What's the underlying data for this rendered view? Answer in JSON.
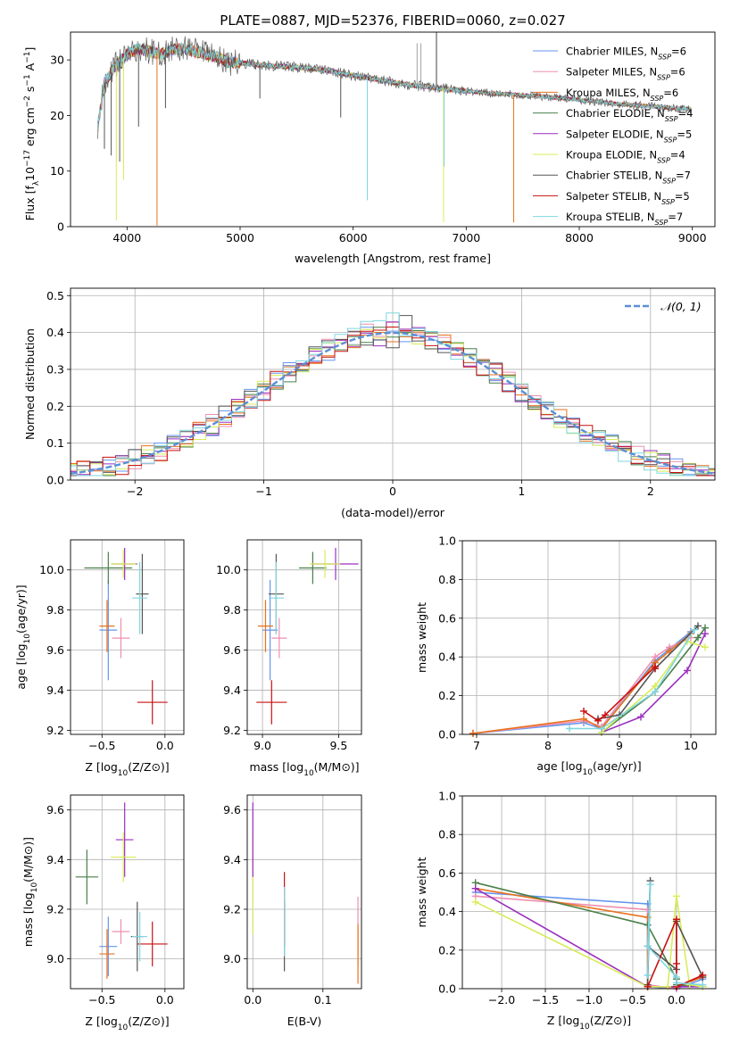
{
  "figure_title": "PLATE=0887, MJD=52376, FIBERID=0060, z=0.027",
  "colors": {
    "chabrier_miles": "#6495ed",
    "salpeter_miles": "#ee8fb0",
    "kroupa_miles": "#e8721e",
    "chabrier_elodie": "#4a7f4a",
    "salpeter_elodie": "#9b2fbf",
    "kroupa_elodie": "#d8ec5a",
    "chabrier_stelib": "#555555",
    "salpeter_stelib": "#c81010",
    "kroupa_stelib": "#7fd6e0",
    "normal_curve": "#5b8fd6"
  },
  "chart_data": [
    {
      "id": "spectrum",
      "type": "line",
      "title": "PLATE=0887, MJD=52376, FIBERID=0060, z=0.027",
      "xlabel": "wavelength [Angstrom, rest frame]",
      "ylabel": "Flux [fλ10⁻¹⁷ erg cm⁻² s⁻¹ A⁻¹]",
      "xlim": [
        3500,
        9200
      ],
      "ylim": [
        0,
        35
      ],
      "xticks": [
        4000,
        5000,
        6000,
        7000,
        8000,
        9000
      ],
      "yticks": [
        0,
        10,
        20,
        30
      ],
      "grid": false,
      "legend_placement": "top-right",
      "series": [
        {
          "name": "Chabrier MILES, Nₛₛₚ=6",
          "legend": "Chabrier MILES, N",
          "sub": "SSP",
          "suffix": "=6",
          "color_key": "chabrier_miles"
        },
        {
          "name": "Salpeter MILES, Nₛₛₚ=6",
          "legend": "Salpeter MILES, N",
          "sub": "SSP",
          "suffix": "=6",
          "color_key": "salpeter_miles"
        },
        {
          "name": "Kroupa MILES, Nₛₛₚ=6",
          "legend": "Kroupa MILES, N",
          "sub": "SSP",
          "suffix": "=6",
          "color_key": "kroupa_miles"
        },
        {
          "name": "Chabrier ELODIE, Nₛₛₚ=4",
          "legend": "Chabrier ELODIE, N",
          "sub": "SSP",
          "suffix": "=4",
          "color_key": "chabrier_elodie"
        },
        {
          "name": "Salpeter ELODIE, Nₛₛₚ=5",
          "legend": "Salpeter ELODIE, N",
          "sub": "SSP",
          "suffix": "=5",
          "color_key": "salpeter_elodie"
        },
        {
          "name": "Kroupa ELODIE, Nₛₛₚ=4",
          "legend": "Kroupa ELODIE, N",
          "sub": "SSP",
          "suffix": "=4",
          "color_key": "kroupa_elodie"
        },
        {
          "name": "Chabrier STELIB, Nₛₛₚ=7",
          "legend": "Chabrier STELIB, N",
          "sub": "SSP",
          "suffix": "=7",
          "color_key": "chabrier_stelib"
        },
        {
          "name": "Salpeter STELIB, Nₛₛₚ=5",
          "legend": "Salpeter STELIB, N",
          "sub": "SSP",
          "suffix": "=5",
          "color_key": "salpeter_stelib"
        },
        {
          "name": "Kroupa STELIB, Nₛₛₚ=7",
          "legend": "Kroupa STELIB, N",
          "sub": "SSP",
          "suffix": "=7",
          "color_key": "kroupa_stelib"
        }
      ],
      "continuum": {
        "x": [
          3740,
          3800,
          3900,
          4000,
          4100,
          4200,
          4300,
          4400,
          4500,
          4600,
          4700,
          4800,
          4900,
          5000,
          5200,
          5400,
          5600,
          5800,
          6000,
          6200,
          6400,
          6600,
          6800,
          7000,
          7200,
          7400,
          7600,
          7800,
          8000,
          8200,
          8400,
          8600,
          8800,
          9000
        ],
        "y": [
          18,
          26,
          29,
          31,
          32,
          31.5,
          31,
          31.8,
          32,
          31.5,
          31,
          30.5,
          29.5,
          29.5,
          29,
          28.8,
          28.5,
          28,
          27.2,
          26.5,
          25.8,
          25.3,
          24.8,
          24.4,
          24.0,
          23.8,
          23.5,
          23.2,
          22.8,
          22.4,
          22.0,
          21.7,
          21.4,
          21.1
        ]
      },
      "absorption_features": [
        {
          "x": 3800,
          "depth": 12,
          "color_key": "chabrier_stelib"
        },
        {
          "x": 3860,
          "depth": 15,
          "color_key": "chabrier_stelib"
        },
        {
          "x": 3905,
          "depth": 28,
          "color_key": "kroupa_elodie"
        },
        {
          "x": 3935,
          "depth": 18,
          "color_key": "chabrier_stelib"
        },
        {
          "x": 3970,
          "depth": 22,
          "color_key": "kroupa_elodie"
        },
        {
          "x": 4102,
          "depth": 14,
          "color_key": "chabrier_stelib"
        },
        {
          "x": 4265,
          "depth": 31,
          "color_key": "kroupa_miles"
        },
        {
          "x": 4340,
          "depth": 10,
          "color_key": "chabrier_stelib"
        },
        {
          "x": 5175,
          "depth": 6,
          "color_key": "chabrier_stelib"
        },
        {
          "x": 5890,
          "depth": 8,
          "color_key": "chabrier_stelib"
        },
        {
          "x": 6125,
          "depth": 22,
          "color_key": "kroupa_stelib"
        },
        {
          "x": 6800,
          "depth": 24,
          "color_key": "kroupa_elodie"
        },
        {
          "x": 6805,
          "depth": 14,
          "color_key": "kroupa_stelib"
        },
        {
          "x": 7420,
          "depth": 23,
          "color_key": "kroupa_miles"
        }
      ],
      "emission_spikes": [
        {
          "x": 6565,
          "height": 33
        },
        {
          "x": 6600,
          "height": 33
        },
        {
          "x": 6732,
          "height": 35
        },
        {
          "x": 6740,
          "height": 35
        }
      ]
    },
    {
      "id": "residuals",
      "type": "line",
      "xlabel": "(data-model)/error",
      "ylabel": "Normed distribution",
      "xlim": [
        -2.5,
        2.5
      ],
      "ylim": [
        0,
        0.52
      ],
      "xticks": [
        -2,
        -1,
        0,
        1,
        2
      ],
      "yticks": [
        0.0,
        0.1,
        0.2,
        0.3,
        0.4,
        0.5
      ],
      "grid": true,
      "legend_placement": "top-right",
      "normal_curve": {
        "name": "𝒩(0, 1)",
        "mean": 0,
        "sigma": 1
      },
      "bin_width": 0.1,
      "histogram_color_keys": [
        "chabrier_miles",
        "salpeter_miles",
        "kroupa_miles",
        "chabrier_elodie",
        "salpeter_elodie",
        "kroupa_elodie",
        "chabrier_stelib",
        "salpeter_stelib",
        "kroupa_stelib"
      ]
    },
    {
      "id": "age_vs_Z",
      "type": "scatter",
      "xlabel": "Z [log₁₀(Z/Z⊙)]",
      "ylabel": "age [log₁₀(age/yr)]",
      "xlim": [
        -0.75,
        0.15
      ],
      "ylim": [
        9.18,
        10.15
      ],
      "xticks": [
        -0.5,
        0.0
      ],
      "yticks": [
        9.2,
        9.4,
        9.6,
        9.8,
        10.0
      ],
      "grid": true,
      "points": [
        {
          "x": -0.45,
          "y": 9.7,
          "xerr": 0.07,
          "yerr": 0.25,
          "color_key": "chabrier_miles"
        },
        {
          "x": -0.35,
          "y": 9.66,
          "xerr": 0.07,
          "yerr": 0.1,
          "color_key": "salpeter_miles"
        },
        {
          "x": -0.46,
          "y": 9.72,
          "xerr": 0.06,
          "yerr": 0.13,
          "color_key": "kroupa_miles"
        },
        {
          "x": -0.45,
          "y": 10.01,
          "xerr": 0.19,
          "yerr": 0.08,
          "color_key": "chabrier_elodie"
        },
        {
          "x": -0.32,
          "y": 10.03,
          "xerr": 0.1,
          "yerr": 0.08,
          "color_key": "salpeter_elodie"
        },
        {
          "x": -0.33,
          "y": 10.03,
          "xerr": 0.1,
          "yerr": 0.07,
          "color_key": "kroupa_elodie"
        },
        {
          "x": -0.18,
          "y": 9.88,
          "xerr": 0.05,
          "yerr": 0.2,
          "color_key": "chabrier_stelib"
        },
        {
          "x": -0.1,
          "y": 9.34,
          "xerr": 0.12,
          "yerr": 0.11,
          "color_key": "salpeter_stelib"
        },
        {
          "x": -0.2,
          "y": 9.86,
          "xerr": 0.06,
          "yerr": 0.18,
          "color_key": "kroupa_stelib"
        }
      ]
    },
    {
      "id": "age_vs_mass",
      "type": "scatter",
      "xlabel": "mass [log₁₀(M/M⊙)]",
      "ylabel": "",
      "xlim": [
        8.9,
        9.65
      ],
      "ylim": [
        9.18,
        10.15
      ],
      "xticks": [
        9.0,
        9.5
      ],
      "yticks": [
        9.2,
        9.4,
        9.6,
        9.8,
        10.0
      ],
      "grid": true,
      "points": [
        {
          "x": 9.05,
          "y": 9.7,
          "xerr": 0.05,
          "yerr": 0.25,
          "color_key": "chabrier_miles"
        },
        {
          "x": 9.11,
          "y": 9.66,
          "xerr": 0.05,
          "yerr": 0.1,
          "color_key": "salpeter_miles"
        },
        {
          "x": 9.02,
          "y": 9.72,
          "xerr": 0.05,
          "yerr": 0.13,
          "color_key": "kroupa_miles"
        },
        {
          "x": 9.33,
          "y": 10.01,
          "xerr": 0.09,
          "yerr": 0.08,
          "color_key": "chabrier_elodie"
        },
        {
          "x": 9.48,
          "y": 10.03,
          "xerr": 0.15,
          "yerr": 0.08,
          "color_key": "salpeter_elodie"
        },
        {
          "x": 9.41,
          "y": 10.03,
          "xerr": 0.1,
          "yerr": 0.07,
          "color_key": "kroupa_elodie"
        },
        {
          "x": 9.09,
          "y": 9.88,
          "xerr": 0.05,
          "yerr": 0.2,
          "color_key": "chabrier_stelib"
        },
        {
          "x": 9.06,
          "y": 9.34,
          "xerr": 0.1,
          "yerr": 0.11,
          "color_key": "salpeter_stelib"
        },
        {
          "x": 9.09,
          "y": 9.86,
          "xerr": 0.05,
          "yerr": 0.18,
          "color_key": "kroupa_stelib"
        }
      ]
    },
    {
      "id": "mass_weight_vs_age",
      "type": "line",
      "xlabel": "age [log₁₀(age/yr)]",
      "ylabel": "mass weight",
      "xlim": [
        6.8,
        10.35
      ],
      "ylim": [
        0,
        1.0
      ],
      "xticks": [
        7,
        8,
        9,
        10
      ],
      "yticks": [
        0.0,
        0.2,
        0.4,
        0.6,
        0.8,
        1.0
      ],
      "grid": true,
      "series": [
        {
          "color_key": "chabrier_miles",
          "x": [
            6.95,
            8.5,
            8.75,
            9.5,
            9.7,
            10.0
          ],
          "y": [
            0.005,
            0.06,
            0.03,
            0.38,
            0.44,
            0.53
          ]
        },
        {
          "color_key": "salpeter_miles",
          "x": [
            6.95,
            8.5,
            8.75,
            9.5,
            9.7,
            10.0
          ],
          "y": [
            0.005,
            0.07,
            0.04,
            0.4,
            0.45,
            0.5
          ]
        },
        {
          "color_key": "kroupa_miles",
          "x": [
            6.95,
            8.5,
            8.75,
            9.5,
            9.7,
            10.0
          ],
          "y": [
            0.005,
            0.08,
            0.03,
            0.37,
            0.43,
            0.52
          ]
        },
        {
          "color_key": "chabrier_elodie",
          "x": [
            8.75,
            9.5,
            10.1,
            10.2
          ],
          "y": [
            0.01,
            0.22,
            0.5,
            0.55
          ]
        },
        {
          "color_key": "salpeter_elodie",
          "x": [
            8.75,
            9.3,
            9.95,
            10.2
          ],
          "y": [
            0.01,
            0.09,
            0.33,
            0.52
          ]
        },
        {
          "color_key": "kroupa_elodie",
          "x": [
            8.75,
            9.5,
            9.95,
            10.2
          ],
          "y": [
            0.01,
            0.25,
            0.48,
            0.45
          ]
        },
        {
          "color_key": "chabrier_stelib",
          "x": [
            8.7,
            9.0,
            9.5,
            10.1
          ],
          "y": [
            0.08,
            0.1,
            0.34,
            0.56
          ]
        },
        {
          "color_key": "salpeter_stelib",
          "x": [
            8.5,
            8.7,
            8.8,
            9.5,
            9.5
          ],
          "y": [
            0.12,
            0.07,
            0.1,
            0.35,
            0.34
          ]
        },
        {
          "color_key": "kroupa_stelib",
          "x": [
            8.3,
            8.75,
            9.5,
            10.05
          ],
          "y": [
            0.03,
            0.03,
            0.22,
            0.54
          ]
        }
      ]
    },
    {
      "id": "mass_vs_Z",
      "type": "scatter",
      "xlabel": "Z [log₁₀(Z/Z⊙)]",
      "ylabel": "mass [log₁₀(M/M⊙)]",
      "xlim": [
        -0.75,
        0.15
      ],
      "ylim": [
        8.88,
        9.66
      ],
      "xticks": [
        -0.5,
        0.0
      ],
      "yticks": [
        9.0,
        9.2,
        9.4,
        9.6
      ],
      "grid": true,
      "points": [
        {
          "x": -0.45,
          "y": 9.05,
          "xerr": 0.07,
          "yerr": 0.12,
          "color_key": "chabrier_miles"
        },
        {
          "x": -0.35,
          "y": 9.11,
          "xerr": 0.07,
          "yerr": 0.05,
          "color_key": "salpeter_miles"
        },
        {
          "x": -0.46,
          "y": 9.02,
          "xerr": 0.06,
          "yerr": 0.1,
          "color_key": "kroupa_miles"
        },
        {
          "x": -0.62,
          "y": 9.33,
          "xerr": 0.09,
          "yerr": 0.11,
          "color_key": "chabrier_elodie"
        },
        {
          "x": -0.32,
          "y": 9.48,
          "xerr": 0.07,
          "yerr": 0.15,
          "color_key": "salpeter_elodie"
        },
        {
          "x": -0.33,
          "y": 9.41,
          "xerr": 0.1,
          "yerr": 0.1,
          "color_key": "kroupa_elodie"
        },
        {
          "x": -0.22,
          "y": 9.09,
          "xerr": 0.05,
          "yerr": 0.14,
          "color_key": "chabrier_stelib"
        },
        {
          "x": -0.1,
          "y": 9.06,
          "xerr": 0.12,
          "yerr": 0.09,
          "color_key": "salpeter_stelib"
        },
        {
          "x": -0.2,
          "y": 9.09,
          "xerr": 0.06,
          "yerr": 0.1,
          "color_key": "kroupa_stelib"
        }
      ]
    },
    {
      "id": "mass_vs_ebv",
      "type": "scatter",
      "xlabel": "E(B-V)",
      "ylabel": "",
      "xlim": [
        -0.008,
        0.155
      ],
      "ylim": [
        8.88,
        9.66
      ],
      "xticks": [
        0.0,
        0.1
      ],
      "yticks": [
        9.0,
        9.2,
        9.4,
        9.6
      ],
      "grid": true,
      "points": [
        {
          "x": 0.0,
          "y": 9.3,
          "yerr": 0.2,
          "color_key": "kroupa_elodie"
        },
        {
          "x": 0.0,
          "y": 9.48,
          "yerr": 0.15,
          "color_key": "salpeter_elodie"
        },
        {
          "x": 0.045,
          "y": 9.09,
          "yerr": 0.14,
          "color_key": "chabrier_stelib"
        },
        {
          "x": 0.045,
          "y": 9.2,
          "yerr": 0.15,
          "color_key": "salpeter_stelib"
        },
        {
          "x": 0.045,
          "y": 9.15,
          "yerr": 0.14,
          "color_key": "kroupa_stelib"
        },
        {
          "x": 0.15,
          "y": 9.11,
          "yerr": 0.14,
          "color_key": "salpeter_miles"
        },
        {
          "x": 0.15,
          "y": 9.02,
          "yerr": 0.12,
          "color_key": "kroupa_miles"
        }
      ]
    },
    {
      "id": "mass_weight_vs_Z",
      "type": "line",
      "xlabel": "Z [log₁₀(Z/Z⊙)]",
      "ylabel": "mass weight",
      "xlim": [
        -2.45,
        0.45
      ],
      "ylim": [
        0,
        1.0
      ],
      "xticks": [
        -2.0,
        -1.5,
        -1.0,
        -0.5,
        0.0
      ],
      "yticks": [
        0.0,
        0.2,
        0.4,
        0.6,
        0.8,
        1.0
      ],
      "grid": true,
      "series": [
        {
          "color_key": "chabrier_miles",
          "x": [
            -2.3,
            -0.33,
            -0.33,
            0.0,
            0.3
          ],
          "y": [
            0.5,
            0.44,
            0.01,
            0.0,
            0.05
          ]
        },
        {
          "color_key": "salpeter_miles",
          "x": [
            -2.3,
            -0.33,
            -0.33,
            0.0,
            0.3
          ],
          "y": [
            0.48,
            0.41,
            0.02,
            0.0,
            0.07
          ]
        },
        {
          "color_key": "kroupa_miles",
          "x": [
            -2.3,
            -0.33,
            -0.33,
            0.0,
            0.3
          ],
          "y": [
            0.52,
            0.37,
            0.01,
            0.01,
            0.06
          ]
        },
        {
          "color_key": "chabrier_elodie",
          "x": [
            -2.3,
            -0.33,
            0.0,
            0.0,
            0.3
          ],
          "y": [
            0.55,
            0.33,
            0.05,
            0.02,
            0.01
          ]
        },
        {
          "color_key": "salpeter_elodie",
          "x": [
            -2.3,
            -0.33,
            0.0,
            0.3
          ],
          "y": [
            0.52,
            0.01,
            0.01,
            0.01
          ]
        },
        {
          "color_key": "kroupa_elodie",
          "x": [
            -2.3,
            -0.33,
            -0.1,
            0.0,
            0.15,
            0.3
          ],
          "y": [
            0.45,
            0.01,
            0.01,
            0.48,
            0.02,
            0.01
          ]
        },
        {
          "color_key": "chabrier_stelib",
          "x": [
            -0.33,
            -0.3,
            -0.33,
            0.0,
            0.0,
            0.3
          ],
          "y": [
            0.02,
            0.56,
            0.22,
            0.1,
            0.35,
            0.06
          ]
        },
        {
          "color_key": "salpeter_stelib",
          "x": [
            -0.33,
            0.0,
            0.0,
            0.0,
            0.3
          ],
          "y": [
            0.01,
            0.36,
            0.13,
            0.01,
            0.07
          ]
        },
        {
          "color_key": "kroupa_stelib",
          "x": [
            -0.33,
            -0.3,
            -0.33,
            0.0,
            0.0,
            0.3
          ],
          "y": [
            0.07,
            0.54,
            0.22,
            0.06,
            0.03,
            0.02
          ]
        }
      ]
    }
  ]
}
